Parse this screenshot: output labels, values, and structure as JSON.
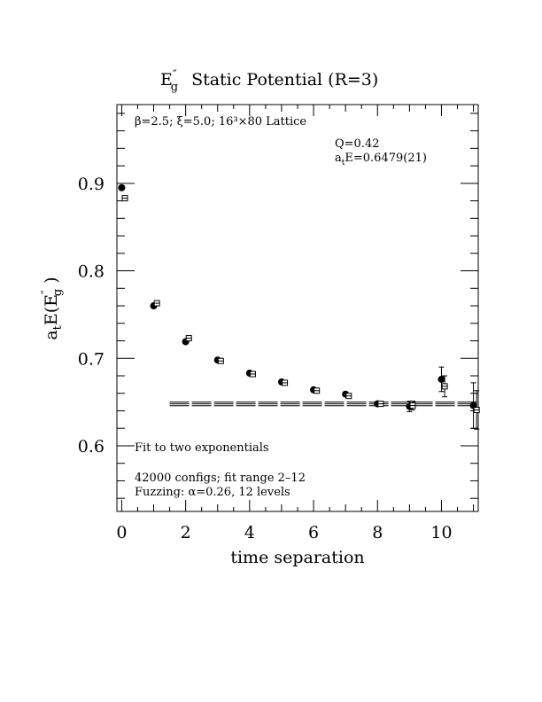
{
  "chart_data": {
    "type": "scatter",
    "title_main": "E",
    "title_sup": "″",
    "title_sub": "g",
    "title_rest": "Static Potential (R=3)",
    "xlabel": "time separation",
    "ylabel_main": "a",
    "ylabel_sub1": "t",
    "ylabel_mid": "E(E",
    "ylabel_sup": "″",
    "ylabel_sub2": "g",
    "ylabel_end": " )",
    "xlim": [
      -0.15,
      11.15
    ],
    "ylim": [
      0.525,
      0.99
    ],
    "xticks": [
      0,
      2,
      4,
      6,
      8,
      10
    ],
    "yticks": [
      0.6,
      0.7,
      0.8,
      0.9
    ],
    "xtick_labels": [
      "0",
      "2",
      "4",
      "6",
      "8",
      "10"
    ],
    "ytick_labels": [
      "0.6",
      "0.7",
      "0.8",
      "0.9"
    ],
    "annotations": {
      "lattice": "β=2.5; ξ=5.0; 16³×80 Lattice",
      "q": "Q=0.42",
      "ate_main": "a",
      "ate_sub": "t",
      "ate_rest": "E=0.6479(21)",
      "fit": "Fit to two exponentials",
      "configs": "42000 configs; fit range 2–12",
      "fuzzing": "Fuzzing: α=0.26, 12 levels"
    },
    "fit": {
      "x_range": [
        1.5,
        11.1
      ],
      "center": 0.6479,
      "error": 0.0021
    },
    "series": [
      {
        "marker": "filled-circle",
        "points": [
          {
            "x": 0,
            "y": 0.895,
            "err": 0
          },
          {
            "x": 1,
            "y": 0.76,
            "err": 0
          },
          {
            "x": 2,
            "y": 0.719,
            "err": 0
          },
          {
            "x": 3,
            "y": 0.698,
            "err": 0
          },
          {
            "x": 4,
            "y": 0.683,
            "err": 0
          },
          {
            "x": 5,
            "y": 0.673,
            "err": 0
          },
          {
            "x": 6,
            "y": 0.664,
            "err": 0
          },
          {
            "x": 7,
            "y": 0.659,
            "err": 0
          },
          {
            "x": 8,
            "y": 0.648,
            "err": 0
          },
          {
            "x": 9,
            "y": 0.645,
            "err": 0.006
          },
          {
            "x": 10,
            "y": 0.676,
            "err": 0.014
          },
          {
            "x": 11,
            "y": 0.646,
            "err": 0.026
          }
        ]
      },
      {
        "marker": "open-square",
        "points": [
          {
            "x": 0.1,
            "y": 0.883,
            "err": 0
          },
          {
            "x": 1.1,
            "y": 0.763,
            "err": 0
          },
          {
            "x": 2.1,
            "y": 0.723,
            "err": 0
          },
          {
            "x": 3.1,
            "y": 0.697,
            "err": 0
          },
          {
            "x": 4.1,
            "y": 0.682,
            "err": 0
          },
          {
            "x": 5.1,
            "y": 0.672,
            "err": 0
          },
          {
            "x": 6.1,
            "y": 0.663,
            "err": 0
          },
          {
            "x": 7.1,
            "y": 0.657,
            "err": 0
          },
          {
            "x": 8.1,
            "y": 0.648,
            "err": 0
          },
          {
            "x": 9.1,
            "y": 0.646,
            "err": 0.005
          },
          {
            "x": 10.1,
            "y": 0.668,
            "err": 0.012
          },
          {
            "x": 11.1,
            "y": 0.641,
            "err": 0.022
          }
        ]
      }
    ]
  }
}
